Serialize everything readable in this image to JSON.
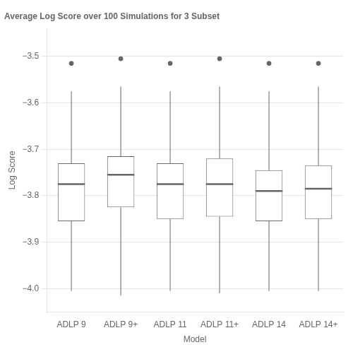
{
  "chart_data": {
    "type": "box",
    "title": "Average Log Score over 100 Simulations for 3 Subset",
    "xlabel": "Model",
    "ylabel": "Log Score",
    "categories": [
      "ADLP 9",
      "ADLP 9+",
      "ADLP 11",
      "ADLP 11+",
      "ADLP 14",
      "ADLP 14+"
    ],
    "ylim": [
      -4.05,
      -3.44
    ],
    "yticks": [
      {
        "value": -4.0,
        "label": "−4.0"
      },
      {
        "value": -3.9,
        "label": "−3.9"
      },
      {
        "value": -3.8,
        "label": "−3.8"
      },
      {
        "value": -3.7,
        "label": "−3.7"
      },
      {
        "value": -3.6,
        "label": "−3.6"
      },
      {
        "value": -3.5,
        "label": "−3.5"
      }
    ],
    "grid": true,
    "color": "white",
    "boxes": [
      {
        "q1": -3.855,
        "median": -3.775,
        "q3": -3.73,
        "whislo": -4.005,
        "whishi": -3.575,
        "fliers": [
          -3.515
        ]
      },
      {
        "q1": -3.825,
        "median": -3.755,
        "q3": -3.715,
        "whislo": -4.015,
        "whishi": -3.565,
        "fliers": [
          -3.505
        ]
      },
      {
        "q1": -3.85,
        "median": -3.775,
        "q3": -3.73,
        "whislo": -4.005,
        "whishi": -3.575,
        "fliers": [
          -3.515
        ]
      },
      {
        "q1": -3.845,
        "median": -3.775,
        "q3": -3.72,
        "whislo": -4.01,
        "whishi": -3.565,
        "fliers": [
          -3.505
        ]
      },
      {
        "q1": -3.855,
        "median": -3.79,
        "q3": -3.745,
        "whislo": -4.005,
        "whishi": -3.575,
        "fliers": [
          -3.515
        ]
      },
      {
        "q1": -3.85,
        "median": -3.785,
        "q3": -3.735,
        "whislo": -4.005,
        "whishi": -3.565,
        "fliers": [
          -3.515
        ]
      }
    ]
  }
}
